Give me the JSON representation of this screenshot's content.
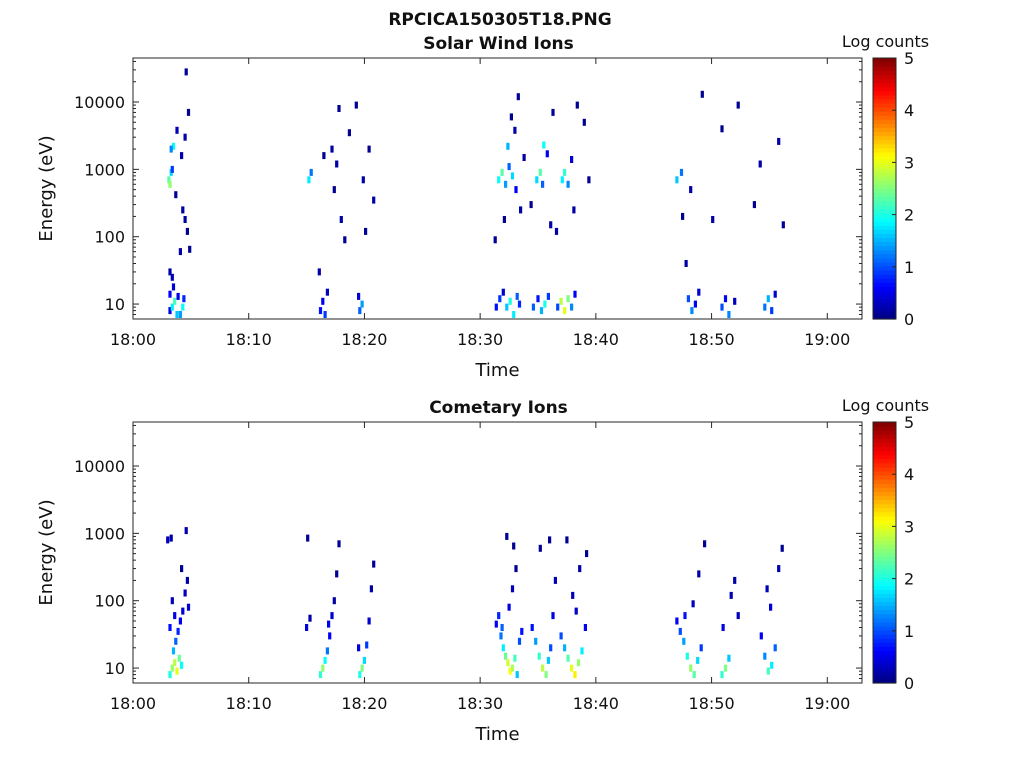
{
  "figure_title": "RPCICA150305T18.PNG",
  "colors": {
    "colormap": [
      "#00007f",
      "#0000ff",
      "#007fff",
      "#00ffff",
      "#7fff7f",
      "#ffff00",
      "#ff7f00",
      "#ff0000",
      "#7f0000"
    ]
  },
  "chart_data": [
    {
      "type": "heatmap",
      "title": "Solar Wind Ions",
      "xlabel": "Time",
      "ylabel": "Energy (eV)",
      "x_ticks": [
        "18:00",
        "18:10",
        "18:20",
        "18:30",
        "18:40",
        "18:50",
        "19:00"
      ],
      "x_range_minutes": [
        0,
        63
      ],
      "y_scale": "log",
      "y_ticks": [
        "10",
        "100",
        "1000",
        "10000"
      ],
      "y_range": [
        6,
        45000
      ],
      "colorbar": {
        "label": "Log counts",
        "range": [
          0,
          5
        ],
        "ticks": [
          "0",
          "1",
          "2",
          "3",
          "4",
          "5"
        ]
      },
      "cells": [
        [
          3.2,
          8,
          0.5
        ],
        [
          3.4,
          9,
          1.8
        ],
        [
          3.6,
          11,
          2.2
        ],
        [
          3.8,
          7,
          1.6
        ],
        [
          3.2,
          14,
          0.6
        ],
        [
          3.5,
          18,
          0.4
        ],
        [
          3.4,
          25,
          0.3
        ],
        [
          3.2,
          30,
          0.2
        ],
        [
          4.1,
          7,
          1.4
        ],
        [
          4.3,
          9,
          1.9
        ],
        [
          3.9,
          13,
          0.5
        ],
        [
          4.4,
          12,
          0.8
        ],
        [
          3.1,
          700,
          2.3
        ],
        [
          3.3,
          900,
          1.7
        ],
        [
          3.2,
          600,
          2.6
        ],
        [
          3.5,
          2200,
          1.9
        ],
        [
          3.3,
          2000,
          1.3
        ],
        [
          3.4,
          1000,
          0.9
        ],
        [
          3.8,
          3800,
          0.3
        ],
        [
          4.2,
          1600,
          0.2
        ],
        [
          4.8,
          7000,
          0.1
        ],
        [
          4.6,
          28000,
          0.1
        ],
        [
          4.3,
          250,
          0.2
        ],
        [
          4.5,
          180,
          0.2
        ],
        [
          4.7,
          120,
          0.1
        ],
        [
          4.1,
          60,
          0.2
        ],
        [
          4.9,
          65,
          0.1
        ],
        [
          3.7,
          420,
          0.1
        ],
        [
          4.5,
          3000,
          0.2
        ],
        [
          15.2,
          700,
          1.8
        ],
        [
          15.4,
          900,
          1.2
        ],
        [
          16.1,
          30,
          0.2
        ],
        [
          16.5,
          1600,
          0.1
        ],
        [
          16.2,
          8,
          0.7
        ],
        [
          16.4,
          11,
          0.5
        ],
        [
          16.6,
          7,
          0.9
        ],
        [
          16.8,
          15,
          0.3
        ],
        [
          17.2,
          2000,
          0.2
        ],
        [
          17.8,
          8000,
          0.1
        ],
        [
          17.4,
          500,
          0.1
        ],
        [
          18.0,
          180,
          0.2
        ],
        [
          18.3,
          90,
          0.1
        ],
        [
          18.7,
          3500,
          0.1
        ],
        [
          17.6,
          1200,
          0.2
        ],
        [
          19.3,
          9000,
          0.1
        ],
        [
          19.6,
          8,
          1.1
        ],
        [
          19.8,
          10,
          1.4
        ],
        [
          19.5,
          13,
          0.4
        ],
        [
          19.9,
          700,
          0.2
        ],
        [
          20.4,
          2000,
          0.1
        ],
        [
          20.8,
          350,
          0.2
        ],
        [
          20.1,
          120,
          0.1
        ],
        [
          31.4,
          9,
          0.7
        ],
        [
          31.7,
          12,
          0.9
        ],
        [
          32.0,
          15,
          0.4
        ],
        [
          32.3,
          9,
          1.6
        ],
        [
          32.6,
          11,
          2.0
        ],
        [
          32.9,
          7,
          1.8
        ],
        [
          33.2,
          13,
          1.1
        ],
        [
          33.4,
          10,
          0.8
        ],
        [
          31.6,
          700,
          1.9
        ],
        [
          31.9,
          900,
          2.3
        ],
        [
          32.2,
          600,
          1.4
        ],
        [
          32.5,
          1100,
          1.1
        ],
        [
          32.8,
          800,
          1.7
        ],
        [
          33.1,
          500,
          0.6
        ],
        [
          32.4,
          2200,
          1.5
        ],
        [
          33.0,
          3800,
          0.2
        ],
        [
          33.5,
          250,
          0.2
        ],
        [
          32.1,
          180,
          0.1
        ],
        [
          31.3,
          90,
          0.1
        ],
        [
          33.3,
          12000,
          0.1
        ],
        [
          32.7,
          6000,
          0.1
        ],
        [
          33.8,
          1500,
          0.2
        ],
        [
          34.6,
          9,
          1.1
        ],
        [
          35.0,
          12,
          0.7
        ],
        [
          35.3,
          8,
          1.5
        ],
        [
          35.6,
          10,
          2.0
        ],
        [
          35.9,
          13,
          0.9
        ],
        [
          34.9,
          700,
          1.7
        ],
        [
          35.2,
          900,
          2.3
        ],
        [
          35.5,
          2300,
          1.9
        ],
        [
          35.8,
          1700,
          0.6
        ],
        [
          35.4,
          600,
          1.1
        ],
        [
          36.1,
          150,
          0.2
        ],
        [
          36.3,
          7000,
          0.1
        ],
        [
          34.4,
          300,
          0.1
        ],
        [
          36.7,
          9,
          1.0
        ],
        [
          37.0,
          11,
          2.8
        ],
        [
          37.3,
          8,
          3.0
        ],
        [
          37.6,
          12,
          2.5
        ],
        [
          37.9,
          9,
          1.3
        ],
        [
          38.2,
          14,
          0.6
        ],
        [
          37.1,
          700,
          1.8
        ],
        [
          37.3,
          900,
          2.1
        ],
        [
          37.6,
          600,
          1.3
        ],
        [
          37.9,
          1400,
          0.4
        ],
        [
          38.1,
          250,
          0.2
        ],
        [
          38.4,
          9000,
          0.1
        ],
        [
          39.0,
          5000,
          0.1
        ],
        [
          39.4,
          700,
          0.1
        ],
        [
          36.6,
          120,
          0.2
        ],
        [
          47.0,
          700,
          1.6
        ],
        [
          47.4,
          900,
          1.2
        ],
        [
          47.8,
          40,
          0.2
        ],
        [
          48.0,
          12,
          1.0
        ],
        [
          48.3,
          8,
          1.3
        ],
        [
          48.6,
          10,
          0.6
        ],
        [
          48.9,
          15,
          0.4
        ],
        [
          50.9,
          9,
          1.0
        ],
        [
          51.2,
          12,
          0.6
        ],
        [
          51.5,
          7,
          1.3
        ],
        [
          52.0,
          11,
          0.3
        ],
        [
          54.6,
          9,
          1.2
        ],
        [
          54.9,
          12,
          1.5
        ],
        [
          55.2,
          8,
          0.9
        ],
        [
          55.5,
          14,
          0.4
        ],
        [
          48.2,
          500,
          0.2
        ],
        [
          49.2,
          13000,
          0.1
        ],
        [
          50.1,
          180,
          0.2
        ],
        [
          50.9,
          4000,
          0.1
        ],
        [
          52.3,
          9000,
          0.1
        ],
        [
          53.7,
          300,
          0.1
        ],
        [
          54.2,
          1200,
          0.2
        ],
        [
          55.8,
          2600,
          0.2
        ],
        [
          56.2,
          150,
          0.1
        ],
        [
          47.5,
          200,
          0.1
        ]
      ]
    },
    {
      "type": "heatmap",
      "title": "Cometary Ions",
      "xlabel": "Time",
      "ylabel": "Energy (eV)",
      "x_ticks": [
        "18:00",
        "18:10",
        "18:20",
        "18:30",
        "18:40",
        "18:50",
        "19:00"
      ],
      "x_range_minutes": [
        0,
        63
      ],
      "y_scale": "log",
      "y_ticks": [
        "10",
        "100",
        "1000",
        "10000"
      ],
      "y_range": [
        6,
        45000
      ],
      "colorbar": {
        "label": "Log counts",
        "range": [
          0,
          5
        ],
        "ticks": [
          "0",
          "1",
          "2",
          "3",
          "4",
          "5"
        ]
      },
      "cells": [
        [
          3.0,
          800,
          0.3
        ],
        [
          3.3,
          850,
          0.2
        ],
        [
          4.6,
          1100,
          0.2
        ],
        [
          3.2,
          8,
          2.0
        ],
        [
          3.4,
          10,
          2.6
        ],
        [
          3.6,
          12,
          2.8
        ],
        [
          3.8,
          9,
          3.0
        ],
        [
          4.0,
          14,
          2.4
        ],
        [
          4.2,
          11,
          1.9
        ],
        [
          3.5,
          18,
          1.5
        ],
        [
          3.7,
          25,
          1.1
        ],
        [
          3.9,
          35,
          0.8
        ],
        [
          4.1,
          50,
          0.6
        ],
        [
          4.3,
          70,
          0.4
        ],
        [
          3.4,
          100,
          0.3
        ],
        [
          4.5,
          130,
          0.3
        ],
        [
          4.7,
          200,
          0.2
        ],
        [
          4.2,
          300,
          0.1
        ],
        [
          3.6,
          60,
          0.5
        ],
        [
          4.8,
          80,
          0.4
        ],
        [
          3.2,
          40,
          0.7
        ],
        [
          15.0,
          40,
          0.5
        ],
        [
          15.3,
          55,
          0.2
        ],
        [
          15.1,
          850,
          0.1
        ],
        [
          16.2,
          8,
          2.1
        ],
        [
          16.4,
          10,
          2.6
        ],
        [
          16.6,
          13,
          1.9
        ],
        [
          16.8,
          18,
          1.2
        ],
        [
          17.0,
          30,
          0.6
        ],
        [
          17.2,
          60,
          0.4
        ],
        [
          17.4,
          100,
          0.2
        ],
        [
          17.6,
          250,
          0.1
        ],
        [
          17.8,
          700,
          0.1
        ],
        [
          16.9,
          45,
          0.5
        ],
        [
          19.6,
          8,
          2.0
        ],
        [
          19.8,
          10,
          2.5
        ],
        [
          20.0,
          13,
          1.7
        ],
        [
          20.2,
          22,
          0.9
        ],
        [
          20.4,
          50,
          0.4
        ],
        [
          20.6,
          150,
          0.2
        ],
        [
          20.8,
          350,
          0.1
        ],
        [
          19.5,
          20,
          0.5
        ],
        [
          31.4,
          45,
          0.6
        ],
        [
          31.6,
          60,
          0.8
        ],
        [
          31.8,
          30,
          1.2
        ],
        [
          32.0,
          20,
          1.8
        ],
        [
          32.2,
          15,
          2.4
        ],
        [
          32.4,
          12,
          2.9
        ],
        [
          32.6,
          9,
          3.1
        ],
        [
          32.8,
          10,
          2.7
        ],
        [
          33.0,
          14,
          2.2
        ],
        [
          33.2,
          8,
          1.6
        ],
        [
          33.4,
          25,
          1.0
        ],
        [
          32.5,
          80,
          0.5
        ],
        [
          32.8,
          150,
          0.3
        ],
        [
          33.1,
          300,
          0.1
        ],
        [
          32.3,
          900,
          0.1
        ],
        [
          32.9,
          650,
          0.1
        ],
        [
          31.9,
          40,
          1.1
        ],
        [
          33.6,
          35,
          0.7
        ],
        [
          34.5,
          40,
          0.7
        ],
        [
          34.8,
          25,
          1.4
        ],
        [
          35.1,
          15,
          2.1
        ],
        [
          35.4,
          10,
          2.8
        ],
        [
          35.7,
          8,
          2.5
        ],
        [
          35.9,
          13,
          1.6
        ],
        [
          36.1,
          20,
          1.0
        ],
        [
          36.3,
          60,
          0.5
        ],
        [
          36.5,
          200,
          0.3
        ],
        [
          36.0,
          800,
          0.1
        ],
        [
          35.2,
          600,
          0.1
        ],
        [
          37.0,
          30,
          1.0
        ],
        [
          37.3,
          20,
          1.5
        ],
        [
          37.6,
          14,
          2.3
        ],
        [
          37.9,
          10,
          3.0
        ],
        [
          38.2,
          8,
          3.2
        ],
        [
          38.5,
          12,
          2.6
        ],
        [
          38.8,
          18,
          1.8
        ],
        [
          39.1,
          40,
          0.6
        ],
        [
          38.0,
          120,
          0.3
        ],
        [
          38.6,
          300,
          0.2
        ],
        [
          39.2,
          500,
          0.1
        ],
        [
          37.5,
          800,
          0.1
        ],
        [
          38.3,
          70,
          0.4
        ],
        [
          47.0,
          50,
          0.6
        ],
        [
          47.3,
          35,
          1.0
        ],
        [
          47.6,
          25,
          1.4
        ],
        [
          47.9,
          15,
          2.0
        ],
        [
          48.2,
          10,
          2.6
        ],
        [
          48.5,
          8,
          2.3
        ],
        [
          48.8,
          13,
          1.7
        ],
        [
          49.1,
          20,
          0.9
        ],
        [
          48.4,
          90,
          0.3
        ],
        [
          48.9,
          250,
          0.2
        ],
        [
          49.4,
          700,
          0.1
        ],
        [
          47.7,
          60,
          0.7
        ],
        [
          50.9,
          8,
          2.1
        ],
        [
          51.2,
          10,
          2.5
        ],
        [
          51.5,
          14,
          1.6
        ],
        [
          51.0,
          40,
          0.5
        ],
        [
          52.0,
          200,
          0.2
        ],
        [
          52.3,
          60,
          0.3
        ],
        [
          51.7,
          120,
          0.3
        ],
        [
          54.3,
          30,
          0.6
        ],
        [
          54.6,
          15,
          1.3
        ],
        [
          54.9,
          9,
          2.2
        ],
        [
          55.2,
          11,
          1.8
        ],
        [
          55.5,
          20,
          1.1
        ],
        [
          55.1,
          80,
          0.4
        ],
        [
          55.8,
          300,
          0.2
        ],
        [
          56.1,
          600,
          0.1
        ],
        [
          54.8,
          150,
          0.3
        ]
      ]
    }
  ]
}
